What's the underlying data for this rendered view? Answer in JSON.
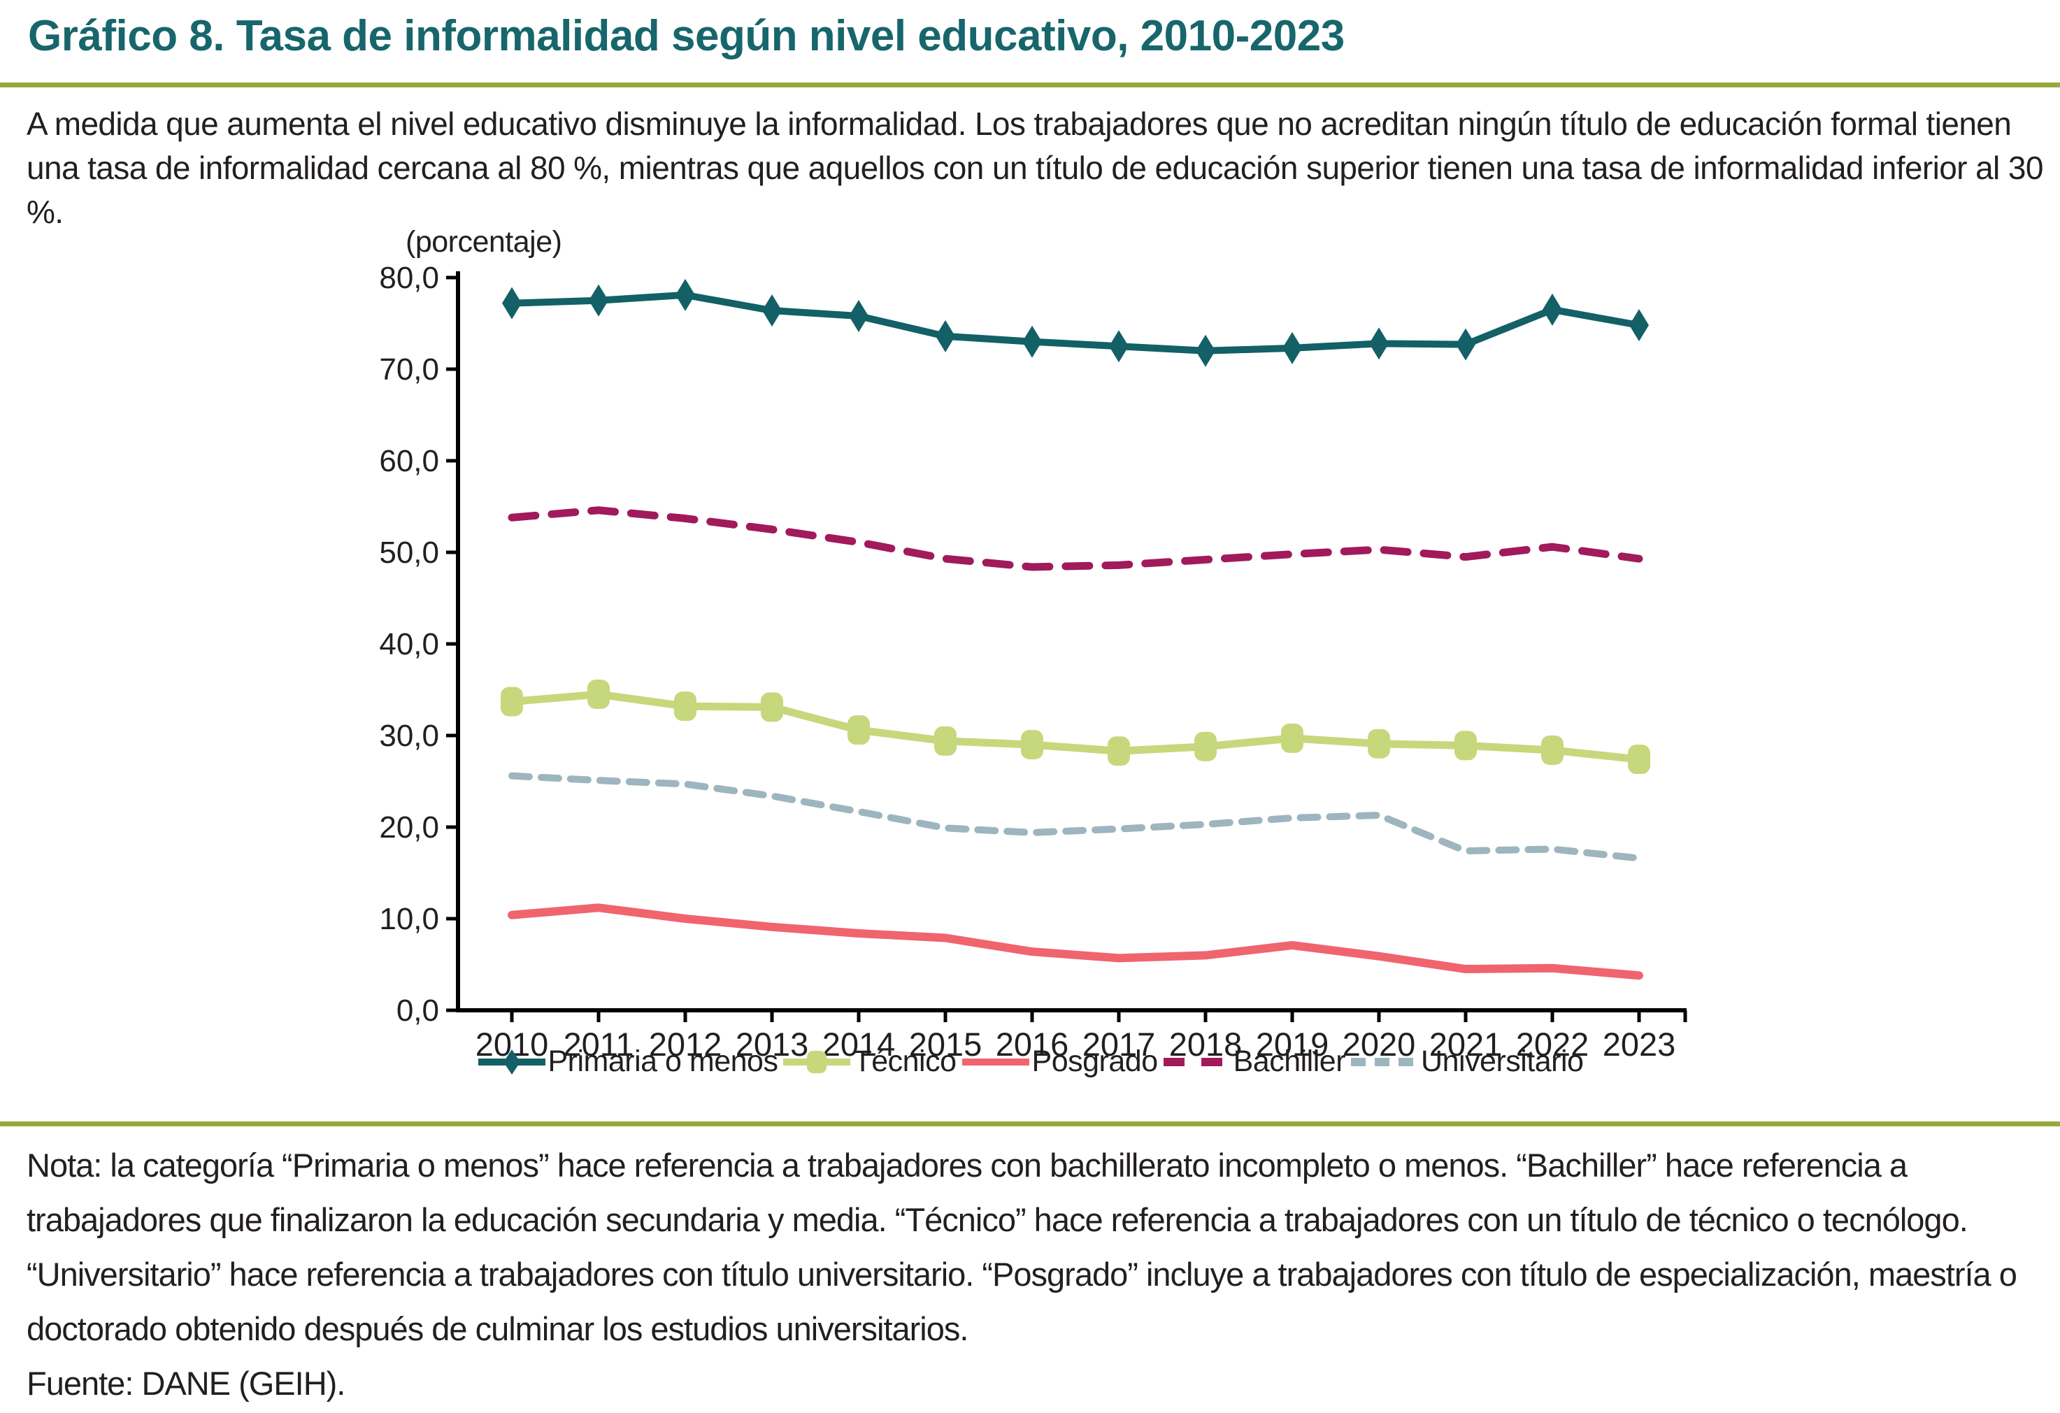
{
  "page": {
    "title": "Gráfico 8. Tasa de informalidad según nivel educativo, 2010-2023",
    "intro": "A medida que aumenta el nivel educativo disminuye la informalidad. Los trabajadores que no acreditan ningún título de educación formal tienen una tasa de informalidad cercana al 80 %, mientras que aquellos con un título de educación superior tienen una tasa de informalidad inferior al 30 %.",
    "note": "Nota: la categoría “Primaria o menos” hace referencia a trabajadores con bachillerato incompleto o menos. “Bachiller” hace referencia a trabajadores que finalizaron la educación secundaria y media. “Técnico” hace referencia a trabajadores con un título de técnico o tecnólogo. “Universitario” hace referencia a trabajadores con título universitario. “Posgrado” incluye a trabajadores con título de especialización, maestría o doctorado obtenido después de culminar los estudios universitarios.",
    "source": "Fuente: DANE (GEIH).",
    "title_color": "#17666c",
    "accent_rule_color": "#99a83b"
  },
  "chart_data": {
    "type": "line",
    "unit_label": "(porcentaje)",
    "x": [
      "2010",
      "2011",
      "2012",
      "2013",
      "2014",
      "2015",
      "2016",
      "2017",
      "2018",
      "2019",
      "2020",
      "2021",
      "2022",
      "2023"
    ],
    "ylim": [
      0,
      80
    ],
    "grid": false,
    "legend_position": "bottom",
    "y_ticks": [
      {
        "v": 0,
        "label": "0,0"
      },
      {
        "v": 10,
        "label": "10,0"
      },
      {
        "v": 20,
        "label": "20,0"
      },
      {
        "v": 30,
        "label": "30,0"
      },
      {
        "v": 40,
        "label": "40,0"
      },
      {
        "v": 50,
        "label": "50,0"
      },
      {
        "v": 60,
        "label": "60,0"
      },
      {
        "v": 70,
        "label": "70,0"
      },
      {
        "v": 80,
        "label": "80,0"
      }
    ],
    "series": [
      {
        "name": "Primaria o menos",
        "color": "#136067",
        "style": "solid",
        "marker": "diamond",
        "values": [
          77.2,
          77.5,
          78.1,
          76.4,
          75.8,
          73.6,
          73.0,
          72.5,
          72.0,
          72.3,
          72.8,
          72.7,
          76.5,
          74.8
        ]
      },
      {
        "name": "Técnico",
        "color": "#c7d77c",
        "style": "solid",
        "marker": "square",
        "values": [
          33.7,
          34.5,
          33.2,
          33.1,
          30.6,
          29.4,
          29.0,
          28.3,
          28.8,
          29.7,
          29.1,
          28.9,
          28.4,
          27.4
        ]
      },
      {
        "name": "Posgrado",
        "color": "#f0646e",
        "style": "solid",
        "marker": "none",
        "values": [
          10.4,
          11.2,
          10.0,
          9.1,
          8.4,
          7.9,
          6.4,
          5.7,
          6.0,
          7.1,
          5.9,
          4.5,
          4.6,
          3.8
        ]
      },
      {
        "name": "Bachiller",
        "color": "#a11a5b",
        "style": "dashed",
        "marker": "none",
        "values": [
          53.8,
          54.6,
          53.7,
          52.5,
          51.1,
          49.3,
          48.4,
          48.6,
          49.2,
          49.8,
          50.3,
          49.5,
          50.6,
          49.3
        ]
      },
      {
        "name": "Universitario",
        "color": "#9db5be",
        "style": "dashed",
        "marker": "none",
        "values": [
          25.6,
          25.1,
          24.7,
          23.4,
          21.7,
          19.9,
          19.4,
          19.8,
          20.3,
          21.0,
          21.3,
          17.4,
          17.6,
          16.6
        ]
      }
    ],
    "legend_order": [
      "Primaria o menos",
      "Técnico",
      "Posgrado",
      "Bachiller",
      "Universitario"
    ]
  }
}
